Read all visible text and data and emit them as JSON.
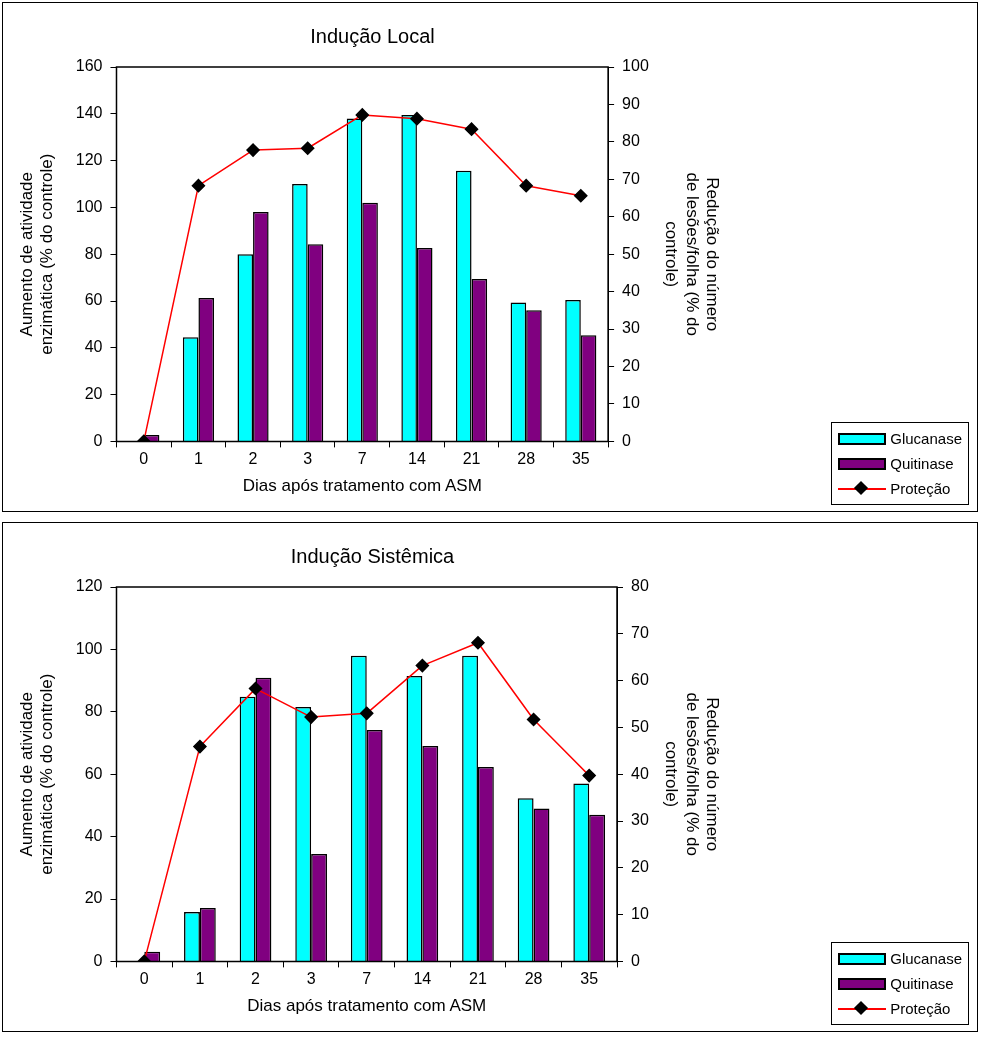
{
  "chart_data": [
    {
      "type": "bar",
      "title": "Indução Local",
      "xlabel": "Dias após tratamento com ASM",
      "ylabel": "Aumento de atividade enzimática (% do controle)",
      "y2label": "Redução do número de lesões/folha (% do controle)",
      "categories": [
        "0",
        "1",
        "2",
        "3",
        "7",
        "14",
        "21",
        "28",
        "35"
      ],
      "series": [
        {
          "name": "Glucanase",
          "color": "#00ffff",
          "values": [
            0,
            44.5,
            80,
            110,
            138,
            139.5,
            115.7,
            59.4,
            60.4
          ]
        },
        {
          "name": "Quitinase",
          "color": "#800080",
          "values": [
            2.7,
            61.3,
            98,
            84.3,
            102,
            82.7,
            69.4,
            56,
            45.4
          ]
        },
        {
          "name": "Proteção",
          "type": "line",
          "axis": "y2",
          "color": "#ff0000",
          "marker": "diamond",
          "values": [
            0,
            68.3,
            77.8,
            78.3,
            87.2,
            86.2,
            83.4,
            68.3,
            65.6
          ]
        }
      ],
      "ylim": [
        0,
        160
      ],
      "yticks": [
        0,
        20,
        40,
        60,
        80,
        100,
        120,
        140,
        160
      ],
      "y2lim": [
        0,
        100
      ],
      "y2ticks": [
        0,
        10,
        20,
        30,
        40,
        50,
        60,
        70,
        80,
        90,
        100
      ],
      "grid": false,
      "legend": "bottom right"
    },
    {
      "type": "bar",
      "title": "Indução Sistêmica",
      "xlabel": "Dias após tratamento com ASM",
      "ylabel": "Aumento de atividade enzimática (% do controle)",
      "y2label": "Redução do número de lesões/folha (% do controle)",
      "categories": [
        "0",
        "1",
        "2",
        "3",
        "7",
        "14",
        "21",
        "28",
        "35"
      ],
      "series": [
        {
          "name": "Glucanase",
          "color": "#00ffff",
          "values": [
            0,
            15.8,
            84.8,
            81.5,
            98,
            91.5,
            98,
            52.3,
            57
          ]
        },
        {
          "name": "Quitinase",
          "color": "#800080",
          "values": [
            3.1,
            17.1,
            90.9,
            34.4,
            74.2,
            69,
            62.3,
            49,
            47
          ]
        },
        {
          "name": "Proteção",
          "type": "line",
          "axis": "y2",
          "color": "#ff0000",
          "marker": "diamond",
          "values": [
            0,
            45.9,
            58.3,
            52.2,
            53,
            63.2,
            68.1,
            51.7,
            39.7
          ]
        }
      ],
      "ylim": [
        0,
        120
      ],
      "yticks": [
        0,
        20,
        40,
        60,
        80,
        100,
        120
      ],
      "y2lim": [
        0,
        80
      ],
      "y2ticks": [
        0,
        10,
        20,
        30,
        40,
        50,
        60,
        70,
        80
      ],
      "grid": false,
      "legend": "bottom right"
    }
  ]
}
